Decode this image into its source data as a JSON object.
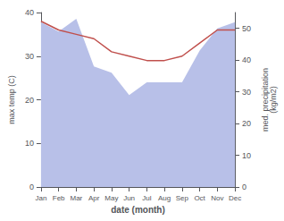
{
  "chart_data": {
    "type": "line",
    "xlabel": "date (month)",
    "ylabel": "max temp (C)",
    "y2label": "med. precipitation\n(kg/m2)",
    "categories": [
      "Jan",
      "Feb",
      "Mar",
      "Apr",
      "May",
      "Jun",
      "Jul",
      "Aug",
      "Sep",
      "Oct",
      "Nov",
      "Dec"
    ],
    "series": [
      {
        "type": "area",
        "axis": "y2",
        "color": "#b8c0e8",
        "values": [
          52,
          49,
          53,
          38,
          36,
          29,
          33,
          33,
          33,
          43,
          50,
          52
        ]
      },
      {
        "type": "line",
        "color": "#c0504d",
        "values": [
          38,
          36,
          35,
          34,
          31,
          30,
          29,
          29,
          30,
          33,
          36,
          36
        ]
      }
    ],
    "ylim": [
      0,
      40
    ],
    "yticks": [
      0,
      10,
      20,
      30,
      40
    ],
    "y2lim": [
      0,
      55
    ],
    "y2ticks": [
      0,
      10,
      20,
      30,
      40,
      50
    ],
    "grid": false
  }
}
